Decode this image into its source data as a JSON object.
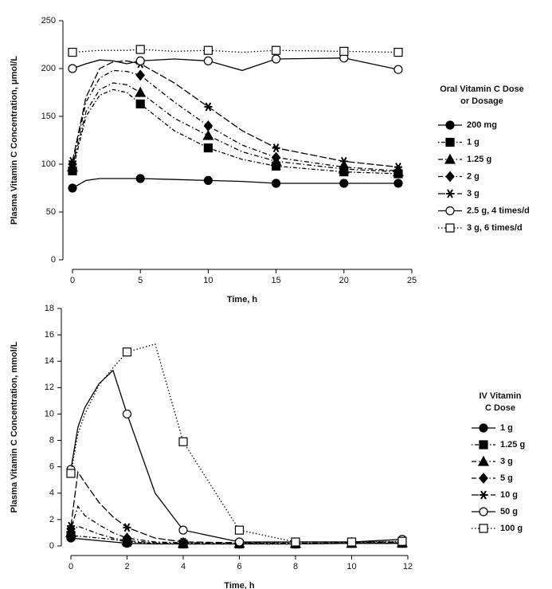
{
  "chart_data": [
    {
      "type": "line",
      "y_label": "Plasma Vitamin C Concentration, μmol/L",
      "x_label": "Time, h",
      "legend_title": [
        "Oral Vitamin C Dose",
        "or Dosage"
      ],
      "legend": "right",
      "x": [
        0,
        1,
        2,
        3,
        4,
        5,
        7.5,
        10,
        12.5,
        15,
        20,
        24
      ],
      "xlim": [
        0,
        25
      ],
      "xticks": [
        0,
        5,
        10,
        15,
        20,
        25
      ],
      "ylim": [
        0,
        250
      ],
      "yticks": [
        0,
        50,
        100,
        150,
        200,
        250
      ],
      "series": [
        {
          "name": "200 mg",
          "color": "#000000",
          "marker": "circle",
          "filled": true,
          "dash": "solid",
          "values": [
            75,
            83,
            85,
            85,
            85,
            85,
            84,
            83,
            82,
            80,
            80,
            80
          ]
        },
        {
          "name": "1 g",
          "color": "#000000",
          "marker": "square",
          "filled": true,
          "dash": "dotdash",
          "values": [
            93,
            150,
            172,
            178,
            175,
            163,
            135,
            117,
            105,
            98,
            92,
            90
          ]
        },
        {
          "name": "1.25 g",
          "color": "#000000",
          "marker": "triangle",
          "filled": true,
          "dash": "dashdot",
          "values": [
            97,
            155,
            178,
            185,
            183,
            175,
            148,
            130,
            113,
            103,
            95,
            92
          ]
        },
        {
          "name": "2 g",
          "color": "#000000",
          "marker": "diamond",
          "filled": true,
          "dash": "dashdot",
          "values": [
            100,
            165,
            190,
            198,
            197,
            193,
            165,
            140,
            120,
            107,
            97,
            93
          ]
        },
        {
          "name": "3 g",
          "color": "#000000",
          "marker": "star",
          "filled": true,
          "dash": "longdash",
          "values": [
            103,
            170,
            200,
            207,
            208,
            205,
            185,
            160,
            135,
            117,
            103,
            97
          ]
        },
        {
          "name": "2.5 g, 4 times/d",
          "color": "#000000",
          "marker": "circle",
          "filled": false,
          "dash": "solid",
          "values": [
            200,
            205,
            209,
            208,
            205,
            208,
            210,
            208,
            198,
            210,
            211,
            199
          ]
        },
        {
          "name": "3 g, 6 times/d",
          "color": "#000000",
          "marker": "square",
          "filled": false,
          "dash": "dotted",
          "values": [
            217,
            218,
            219,
            219,
            219,
            220,
            218,
            219,
            217,
            219,
            218,
            217
          ]
        }
      ]
    },
    {
      "type": "line",
      "y_label": "Plasma Vitamin C Concentration, mmol/L",
      "x_label": "Time, h",
      "legend_title": [
        "IV Vitamin",
        "C Dose"
      ],
      "legend": "right",
      "x": [
        0,
        0.25,
        0.5,
        1,
        1.5,
        2,
        3,
        4,
        6,
        8,
        10,
        11.8
      ],
      "xlim": [
        0,
        12
      ],
      "xticks": [
        0,
        2,
        4,
        6,
        8,
        10,
        12
      ],
      "ylim": [
        0,
        18
      ],
      "yticks": [
        0,
        2,
        4,
        6,
        8,
        10,
        12,
        14,
        16,
        18
      ],
      "series": [
        {
          "name": "1 g",
          "color": "#000000",
          "marker": "circle",
          "filled": true,
          "dash": "solid",
          "values": [
            0.6,
            0.55,
            0.5,
            0.4,
            0.3,
            0.2,
            0.15,
            0.15,
            0.15,
            0.15,
            0.2,
            0.2
          ]
        },
        {
          "name": "1.25 g",
          "color": "#000000",
          "marker": "square",
          "filled": true,
          "dash": "dotdash",
          "values": [
            0.8,
            0.75,
            0.7,
            0.6,
            0.5,
            0.3,
            0.2,
            0.15,
            0.15,
            0.15,
            0.2,
            0.2
          ]
        },
        {
          "name": "3 g",
          "color": "#000000",
          "marker": "triangle",
          "filled": true,
          "dash": "dashdot",
          "values": [
            1.0,
            1.5,
            1.3,
            0.9,
            0.6,
            0.4,
            0.25,
            0.2,
            0.2,
            0.2,
            0.2,
            0.25
          ]
        },
        {
          "name": "5 g",
          "color": "#000000",
          "marker": "diamond",
          "filled": true,
          "dash": "dashdot",
          "values": [
            1.3,
            3.0,
            2.3,
            1.6,
            1.0,
            0.6,
            0.3,
            0.25,
            0.2,
            0.2,
            0.25,
            0.3
          ]
        },
        {
          "name": "10 g",
          "color": "#000000",
          "marker": "star",
          "filled": true,
          "dash": "longdash",
          "values": [
            1.5,
            5.6,
            4.8,
            3.3,
            2.2,
            1.4,
            0.6,
            0.3,
            0.25,
            0.3,
            0.3,
            0.3
          ]
        },
        {
          "name": "50 g",
          "color": "#000000",
          "marker": "circle",
          "filled": false,
          "dash": "solid",
          "values": [
            5.8,
            9.0,
            10.5,
            12.3,
            13.3,
            10.0,
            4.0,
            1.2,
            0.3,
            0.3,
            0.3,
            0.5
          ]
        },
        {
          "name": "100 g",
          "color": "#000000",
          "marker": "square",
          "filled": false,
          "dash": "dotted",
          "values": [
            5.5,
            8.5,
            10.0,
            12.2,
            13.5,
            14.7,
            15.3,
            7.9,
            1.2,
            0.3,
            0.3,
            0.35
          ]
        }
      ]
    }
  ]
}
